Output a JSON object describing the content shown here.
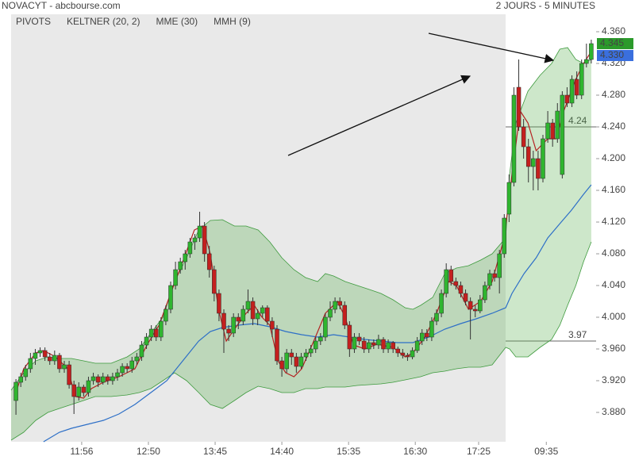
{
  "chart_data": {
    "type": "candlestick",
    "title": "NOVACYT - abcbourse.com",
    "subtitle": "2 JOURS - 5 MINUTES",
    "xlim": [
      -1,
      120
    ],
    "ylim": [
      3.843,
      4.382
    ],
    "xticks": [
      {
        "value": 13.6,
        "label": "11:56"
      },
      {
        "value": 27.4,
        "label": "12:50"
      },
      {
        "value": 41.2,
        "label": "13:45"
      },
      {
        "value": 55,
        "label": "14:40"
      },
      {
        "value": 68.8,
        "label": "15:35"
      },
      {
        "value": 82.6,
        "label": "16:30"
      },
      {
        "value": 95.7,
        "label": "17:25"
      },
      {
        "value": 109.7,
        "label": "09:35"
      }
    ],
    "yticks": [
      {
        "value": 4.36,
        "label": "4.360"
      },
      {
        "value": 4.32,
        "label": "4.320"
      },
      {
        "value": 4.28,
        "label": "4.280"
      },
      {
        "value": 4.24,
        "label": "4.240"
      },
      {
        "value": 4.2,
        "label": "4.200"
      },
      {
        "value": 4.16,
        "label": "4.160"
      },
      {
        "value": 4.12,
        "label": "4.120"
      },
      {
        "value": 4.08,
        "label": "4.080"
      },
      {
        "value": 4.04,
        "label": "4.040"
      },
      {
        "value": 4.0,
        "label": "4.000"
      },
      {
        "value": 3.96,
        "label": "3.960"
      },
      {
        "value": 3.92,
        "label": "3.920"
      },
      {
        "value": 3.88,
        "label": "3.880"
      }
    ],
    "up_color": "#2fb52f",
    "down_color": "#c4201e",
    "candles": [
      [
        3.895,
        3.922,
        3.877,
        3.918
      ],
      [
        3.918,
        3.93,
        3.912,
        3.925
      ],
      [
        3.925,
        3.94,
        3.92,
        3.935
      ],
      [
        3.935,
        3.955,
        3.93,
        3.948
      ],
      [
        3.948,
        3.96,
        3.94,
        3.955
      ],
      [
        3.955,
        3.962,
        3.95,
        3.958
      ],
      [
        3.958,
        3.962,
        3.945,
        3.95
      ],
      [
        3.95,
        3.955,
        3.94,
        3.945
      ],
      [
        3.945,
        3.958,
        3.94,
        3.952
      ],
      [
        3.952,
        3.955,
        3.93,
        3.935
      ],
      [
        3.935,
        3.945,
        3.93,
        3.94
      ],
      [
        3.94,
        3.945,
        3.91,
        3.915
      ],
      [
        3.915,
        3.92,
        3.878,
        3.9
      ],
      [
        3.9,
        3.918,
        3.895,
        3.912
      ],
      [
        3.912,
        3.915,
        3.9,
        3.905
      ],
      [
        3.905,
        3.925,
        3.9,
        3.92
      ],
      [
        3.92,
        3.93,
        3.915,
        3.925
      ],
      [
        3.925,
        3.928,
        3.912,
        3.918
      ],
      [
        3.918,
        3.93,
        3.915,
        3.925
      ],
      [
        3.925,
        3.928,
        3.915,
        3.92
      ],
      [
        3.92,
        3.93,
        3.915,
        3.925
      ],
      [
        3.925,
        3.935,
        3.92,
        3.93
      ],
      [
        3.93,
        3.942,
        3.925,
        3.938
      ],
      [
        3.938,
        3.942,
        3.93,
        3.935
      ],
      [
        3.935,
        3.95,
        3.93,
        3.945
      ],
      [
        3.945,
        3.955,
        3.94,
        3.95
      ],
      [
        3.95,
        3.97,
        3.945,
        3.965
      ],
      [
        3.965,
        3.98,
        3.96,
        3.975
      ],
      [
        3.975,
        3.99,
        3.97,
        3.985
      ],
      [
        3.985,
        3.99,
        3.97,
        3.975
      ],
      [
        3.975,
        4.0,
        3.97,
        3.995
      ],
      [
        3.995,
        4.015,
        3.99,
        4.01
      ],
      [
        4.01,
        4.045,
        4.005,
        4.04
      ],
      [
        4.04,
        4.07,
        4.035,
        4.06
      ],
      [
        4.06,
        4.075,
        4.055,
        4.07
      ],
      [
        4.07,
        4.085,
        4.06,
        4.08
      ],
      [
        4.08,
        4.1,
        4.075,
        4.095
      ],
      [
        4.095,
        4.105,
        4.085,
        4.1
      ],
      [
        4.1,
        4.133,
        4.095,
        4.115
      ],
      [
        4.115,
        4.12,
        4.07,
        4.08
      ],
      [
        4.08,
        4.09,
        4.05,
        4.06
      ],
      [
        4.06,
        4.065,
        4.02,
        4.03
      ],
      [
        4.03,
        4.035,
        3.995,
        4.005
      ],
      [
        4.005,
        4.01,
        3.955,
        3.985
      ],
      [
        3.985,
        3.99,
        3.97,
        3.98
      ],
      [
        3.98,
        4.005,
        3.975,
        4.0
      ],
      [
        4.0,
        4.005,
        3.985,
        3.995
      ],
      [
        3.995,
        4.015,
        3.99,
        4.01
      ],
      [
        4.01,
        4.035,
        4.005,
        4.02
      ],
      [
        4.02,
        4.025,
        3.99,
        3.998
      ],
      [
        3.998,
        4.01,
        3.99,
        4.005
      ],
      [
        4.005,
        4.015,
        4.0,
        4.012
      ],
      [
        4.012,
        4.015,
        3.99,
        3.995
      ],
      [
        3.995,
        4.0,
        3.975,
        3.985
      ],
      [
        3.985,
        3.99,
        3.94,
        3.945
      ],
      [
        3.945,
        3.95,
        3.925,
        3.935
      ],
      [
        3.935,
        3.96,
        3.93,
        3.955
      ],
      [
        3.955,
        3.96,
        3.94,
        3.95
      ],
      [
        3.95,
        3.955,
        3.93,
        3.938
      ],
      [
        3.938,
        3.955,
        3.935,
        3.95
      ],
      [
        3.95,
        3.96,
        3.945,
        3.955
      ],
      [
        3.955,
        3.965,
        3.95,
        3.96
      ],
      [
        3.96,
        3.975,
        3.955,
        3.97
      ],
      [
        3.97,
        3.98,
        3.965,
        3.975
      ],
      [
        3.975,
        4.005,
        3.97,
        4.0
      ],
      [
        4.0,
        4.02,
        3.995,
        4.01
      ],
      [
        4.01,
        4.025,
        4.005,
        4.02
      ],
      [
        4.02,
        4.025,
        4.01,
        4.015
      ],
      [
        4.015,
        4.02,
        3.985,
        3.99
      ],
      [
        3.99,
        3.995,
        3.95,
        3.96
      ],
      [
        3.96,
        3.98,
        3.955,
        3.975
      ],
      [
        3.975,
        3.98,
        3.965,
        3.97
      ],
      [
        3.97,
        3.975,
        3.955,
        3.96
      ],
      [
        3.96,
        3.972,
        3.955,
        3.968
      ],
      [
        3.968,
        3.972,
        3.96,
        3.965
      ],
      [
        3.965,
        3.978,
        3.96,
        3.972
      ],
      [
        3.972,
        3.975,
        3.955,
        3.96
      ],
      [
        3.96,
        3.972,
        3.955,
        3.968
      ],
      [
        3.968,
        3.97,
        3.955,
        3.96
      ],
      [
        3.96,
        3.963,
        3.95,
        3.955
      ],
      [
        3.955,
        3.96,
        3.948,
        3.952
      ],
      [
        3.952,
        3.955,
        3.945,
        3.95
      ],
      [
        3.95,
        3.962,
        3.947,
        3.958
      ],
      [
        3.958,
        3.975,
        3.955,
        3.97
      ],
      [
        3.97,
        3.985,
        3.965,
        3.98
      ],
      [
        3.98,
        3.985,
        3.97,
        3.975
      ],
      [
        3.975,
        4.0,
        3.97,
        3.995
      ],
      [
        3.995,
        4.01,
        3.99,
        4.005
      ],
      [
        4.005,
        4.035,
        4.0,
        4.03
      ],
      [
        4.03,
        4.068,
        4.025,
        4.06
      ],
      [
        4.06,
        4.065,
        4.04,
        4.045
      ],
      [
        4.045,
        4.05,
        4.035,
        4.04
      ],
      [
        4.04,
        4.045,
        4.025,
        4.03
      ],
      [
        4.03,
        4.035,
        4.015,
        4.02
      ],
      [
        4.02,
        4.025,
        3.972,
        4.01
      ],
      [
        4.01,
        4.015,
        4.0,
        4.008
      ],
      [
        4.008,
        4.028,
        4.005,
        4.022
      ],
      [
        4.022,
        4.045,
        4.018,
        4.04
      ],
      [
        4.04,
        4.06,
        4.035,
        4.055
      ],
      [
        4.055,
        4.06,
        4.045,
        4.05
      ],
      [
        4.05,
        4.085,
        4.03,
        4.08
      ],
      [
        4.08,
        4.13,
        4.075,
        4.125
      ],
      [
        4.13,
        4.18,
        4.12,
        4.17
      ],
      [
        4.17,
        4.29,
        4.165,
        4.28
      ],
      [
        4.29,
        4.325,
        4.235,
        4.24
      ],
      [
        4.24,
        4.25,
        4.2,
        4.215
      ],
      [
        4.215,
        4.225,
        4.17,
        4.19
      ],
      [
        4.19,
        4.21,
        4.16,
        4.2
      ],
      [
        4.2,
        4.21,
        4.16,
        4.175
      ],
      [
        4.175,
        4.23,
        4.17,
        4.225
      ],
      [
        4.225,
        4.26,
        4.22,
        4.245
      ],
      [
        4.245,
        4.25,
        4.215,
        4.225
      ],
      [
        4.225,
        4.27,
        4.22,
        4.26
      ],
      [
        4.18,
        4.285,
        4.175,
        4.28
      ],
      [
        4.28,
        4.29,
        4.265,
        4.27
      ],
      [
        4.27,
        4.305,
        4.265,
        4.3
      ],
      [
        4.3,
        4.31,
        4.275,
        4.28
      ],
      [
        4.28,
        4.325,
        4.275,
        4.32
      ],
      [
        4.32,
        4.345,
        4.315,
        4.325
      ],
      [
        4.325,
        4.35,
        4.32,
        4.345
      ]
    ],
    "indicators": [
      {
        "name": "PIVOTS",
        "color": "#555555",
        "values": [
          4.24,
          3.97
        ]
      },
      {
        "name": "KELTNER (20, 2)",
        "color": "#3d9a3d",
        "x": [
          -1,
          1.6,
          4.1,
          6.6,
          9,
          11.5,
          14,
          16.4,
          19.7,
          23,
          25.5,
          27.9,
          30.4,
          32.8,
          35.3,
          37.8,
          40.2,
          42.7,
          45.2,
          47.6,
          50.1,
          52.5,
          55,
          57.5,
          59.9,
          62.4,
          64,
          65.7,
          68.1,
          70.6,
          73.1,
          75.5,
          78,
          80.5,
          82.1,
          83.7,
          86.2,
          88.7,
          91.1,
          93.6,
          96.1,
          98.5,
          101.3,
          102.1,
          103.4,
          105.9,
          108.4,
          110.8,
          112.5,
          114.1,
          115.8,
          117.4,
          119
        ],
        "upper": [
          3.908,
          3.93,
          3.945,
          3.95,
          3.948,
          3.948,
          3.945,
          3.942,
          3.942,
          3.95,
          3.96,
          3.98,
          4.0,
          4.045,
          4.075,
          4.11,
          4.122,
          4.123,
          4.115,
          4.115,
          4.11,
          4.095,
          4.075,
          4.06,
          4.05,
          4.045,
          4.055,
          4.052,
          4.045,
          4.04,
          4.035,
          4.03,
          4.022,
          4.012,
          4.01,
          4.015,
          4.025,
          4.055,
          4.062,
          4.065,
          4.072,
          4.08,
          4.1,
          4.18,
          4.245,
          4.285,
          4.305,
          4.32,
          4.338,
          4.34,
          4.325,
          4.32,
          4.325
        ],
        "lower": [
          3.845,
          3.855,
          3.87,
          3.88,
          3.885,
          3.89,
          3.895,
          3.9,
          3.9,
          3.902,
          3.905,
          3.91,
          3.92,
          3.93,
          3.92,
          3.905,
          3.89,
          3.885,
          3.895,
          3.905,
          3.913,
          3.91,
          3.905,
          3.905,
          3.91,
          3.91,
          3.912,
          3.912,
          3.912,
          3.914,
          3.915,
          3.916,
          3.918,
          3.921,
          3.923,
          3.925,
          3.93,
          3.932,
          3.935,
          3.937,
          3.937,
          3.94,
          3.962,
          3.96,
          3.95,
          3.95,
          3.962,
          3.972,
          3.99,
          4.015,
          4.04,
          4.07,
          4.095
        ]
      },
      {
        "name": "MME (30)",
        "color": "#2d6fc7",
        "x": [
          5.7,
          9,
          11.5,
          14.8,
          18.1,
          21.3,
          24.6,
          27.9,
          31.2,
          34.5,
          37.8,
          40.2,
          42.7,
          46,
          49.3,
          52.5,
          55.8,
          59.1,
          62.4,
          65.7,
          69,
          72.2,
          75.5,
          78.8,
          82.1,
          85.4,
          88.7,
          92,
          95.2,
          98.5,
          101.3,
          102.6,
          105.1,
          107.6,
          110,
          112.5,
          114.9,
          117.4,
          119
        ],
        "values": [
          3.843,
          3.855,
          3.86,
          3.865,
          3.87,
          3.878,
          3.89,
          3.905,
          3.92,
          3.945,
          3.97,
          3.982,
          3.987,
          3.99,
          3.992,
          3.988,
          3.982,
          3.978,
          3.975,
          3.978,
          3.975,
          3.972,
          3.97,
          3.968,
          3.968,
          3.975,
          3.985,
          3.992,
          3.998,
          4.005,
          4.012,
          4.03,
          4.055,
          4.075,
          4.1,
          4.118,
          4.135,
          4.155,
          4.167
        ]
      },
      {
        "name": "MMH (9)",
        "color": "#b52222",
        "x": [
          0,
          1.6,
          4.1,
          5.7,
          8.2,
          10.7,
          12.3,
          14,
          15.6,
          18.1,
          21.3,
          24.6,
          27.1,
          29.6,
          32,
          34.5,
          36.9,
          38.6,
          40.2,
          41.9,
          43.5,
          45.2,
          47.6,
          49.3,
          50.9,
          52.5,
          54.2,
          55.8,
          57.5,
          59.1,
          61.6,
          64,
          66.5,
          68.1,
          69.8,
          72.2,
          74.7,
          78,
          80.5,
          82.1,
          84.6,
          87,
          89.5,
          91.1,
          93.6,
          96.1,
          98.5,
          101,
          102.6,
          104.3,
          105.9,
          107.6,
          110,
          111.7,
          113.3,
          115.8,
          117.4,
          119
        ],
        "values": [
          3.905,
          3.935,
          3.955,
          3.958,
          3.95,
          3.935,
          3.9,
          3.898,
          3.91,
          3.918,
          3.925,
          3.935,
          3.965,
          3.99,
          4.03,
          4.07,
          4.11,
          4.115,
          4.08,
          4.01,
          3.97,
          3.985,
          4.005,
          4.015,
          4.0,
          3.99,
          3.945,
          3.93,
          3.925,
          3.935,
          3.97,
          4.005,
          4.02,
          4.0,
          3.965,
          3.96,
          3.966,
          3.962,
          3.95,
          3.955,
          3.975,
          4.005,
          4.045,
          4.04,
          4.01,
          4.02,
          4.045,
          4.1,
          4.18,
          4.26,
          4.245,
          4.21,
          4.225,
          4.225,
          4.26,
          4.3,
          4.32,
          4.335
        ]
      }
    ],
    "price_tags": [
      {
        "value": 4.345,
        "label": "4.345",
        "color": "#2b9a2b"
      },
      {
        "value": 4.33,
        "label": "4.330",
        "color": "#3a6fde"
      }
    ]
  }
}
